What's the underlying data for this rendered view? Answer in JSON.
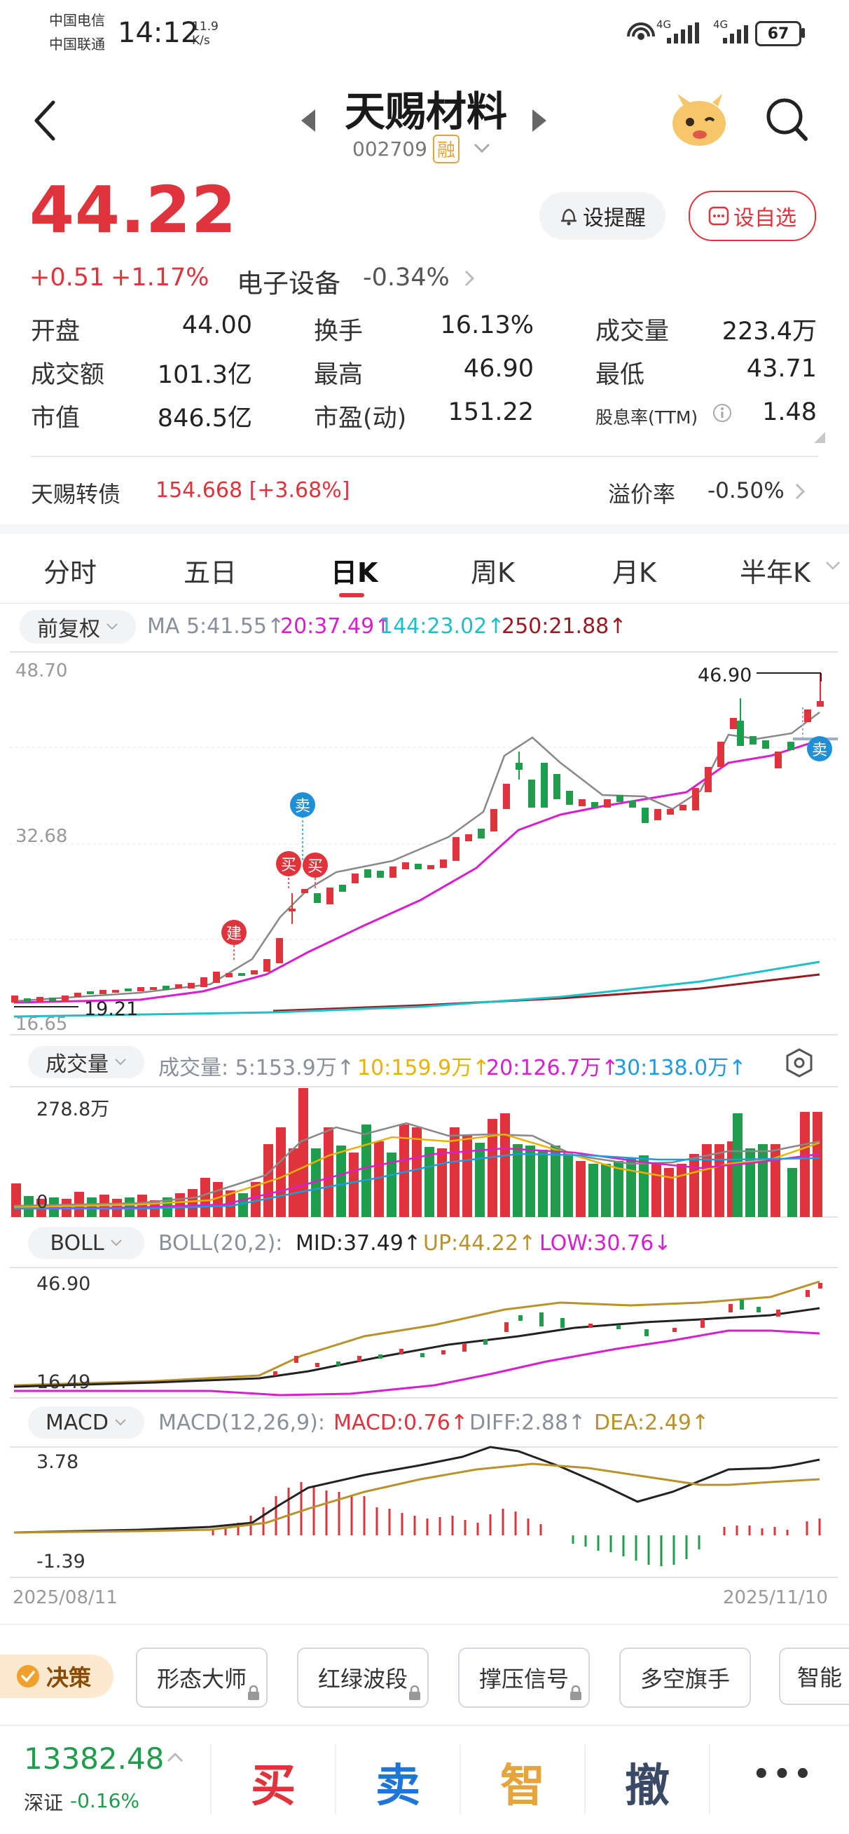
{
  "status_bar": {
    "carrier1": "中国电信",
    "carrier2": "中国联通",
    "time": "14:12",
    "speed_value": "11.9",
    "speed_unit": "K/s",
    "net1": "4G",
    "net2": "4G",
    "battery": "67"
  },
  "header": {
    "stock_name": "天赐材料",
    "stock_code": "002709",
    "margin_badge": "融"
  },
  "quote": {
    "price": "44.22",
    "change": "+0.51",
    "change_pct": "+1.17%",
    "sector_name": "电子设备",
    "sector_change": "-0.34%",
    "remind_label": "设提醒",
    "watchlist_label": "设自选",
    "stats": [
      {
        "label": "开盘",
        "value": "44.00",
        "color": "#e0343c"
      },
      {
        "label": "换手",
        "value": "16.13%",
        "color": "#222222"
      },
      {
        "label": "成交量",
        "value": "223.4万",
        "color": "#222222"
      },
      {
        "label": "成交额",
        "value": "101.3亿",
        "color": "#222222"
      },
      {
        "label": "最高",
        "value": "46.90",
        "color": "#e0343c"
      },
      {
        "label": "最低",
        "value": "43.71",
        "color": "#222222"
      },
      {
        "label": "市值",
        "value": "846.5亿",
        "color": "#222222"
      },
      {
        "label": "市盈(动)",
        "value": "151.22",
        "color": "#222222"
      },
      {
        "label": "股息率(TTM)",
        "value": "1.48",
        "color": "#222222"
      }
    ],
    "bond_name": "天赐转债",
    "bond_value": "154.668 [+3.68%]",
    "premium_label": "溢价率",
    "premium_value": "-0.50%"
  },
  "tabs": [
    "分时",
    "五日",
    "日K",
    "周K",
    "月K",
    "半年K"
  ],
  "active_tab": "日K",
  "kline": {
    "adjust_label": "前复权",
    "ma_label": "MA 5:41.55↑",
    "ma20": "20:37.49↑",
    "ma144": "144:23.02↑",
    "ma250": "250:21.88↑",
    "y_top": "48.70",
    "y_mid": "32.68",
    "y_bottom": "16.65",
    "high_mark": "46.90",
    "low_mark": "19.21",
    "sig_build": "建",
    "sig_buy": "买",
    "sig_sell": "卖"
  },
  "volume": {
    "label": "成交量",
    "title": "成交量: 5:153.9万↑",
    "v10": "10:159.9万↑",
    "v20": "20:126.7万↑",
    "v30": "30:138.0万↑",
    "y_top": "278.8万",
    "y_zero": "0"
  },
  "boll": {
    "label": "BOLL",
    "title": "BOLL(20,2):",
    "mid": "MID:37.49↑",
    "up": "UP:44.22↑",
    "low": "LOW:30.76↓",
    "y_top": "46.90",
    "y_bottom": "16.49"
  },
  "macd": {
    "label": "MACD",
    "title": "MACD(12,26,9):",
    "macd": "MACD:0.76↑",
    "diff": "DIFF:2.88↑",
    "dea": "DEA:2.49↑",
    "y_top": "3.78",
    "y_bottom": "-1.39",
    "date_start": "2025/08/11",
    "date_end": "2025/11/10"
  },
  "tools": {
    "decision": "决策",
    "items": [
      "形态大师",
      "红绿波段",
      "撑压信号",
      "多空旗手",
      "智能"
    ]
  },
  "bottom_bar": {
    "index_value": "13382.48",
    "index_name": "深证",
    "index_change": "-0.16%",
    "buy": "买",
    "sell": "卖",
    "smart": "智",
    "cancel": "撤",
    "more": "•••"
  },
  "colors": {
    "up": "#e0343c",
    "down": "#1f9d4c",
    "ma20": "#d81ed0",
    "ma144": "#1ec0c8",
    "ma250": "#9a1a22",
    "vol10": "#e6b400",
    "vol30": "#1e9be0",
    "boll_mid": "#222222",
    "boll_up": "#b8922a",
    "dea": "#b8922a"
  }
}
